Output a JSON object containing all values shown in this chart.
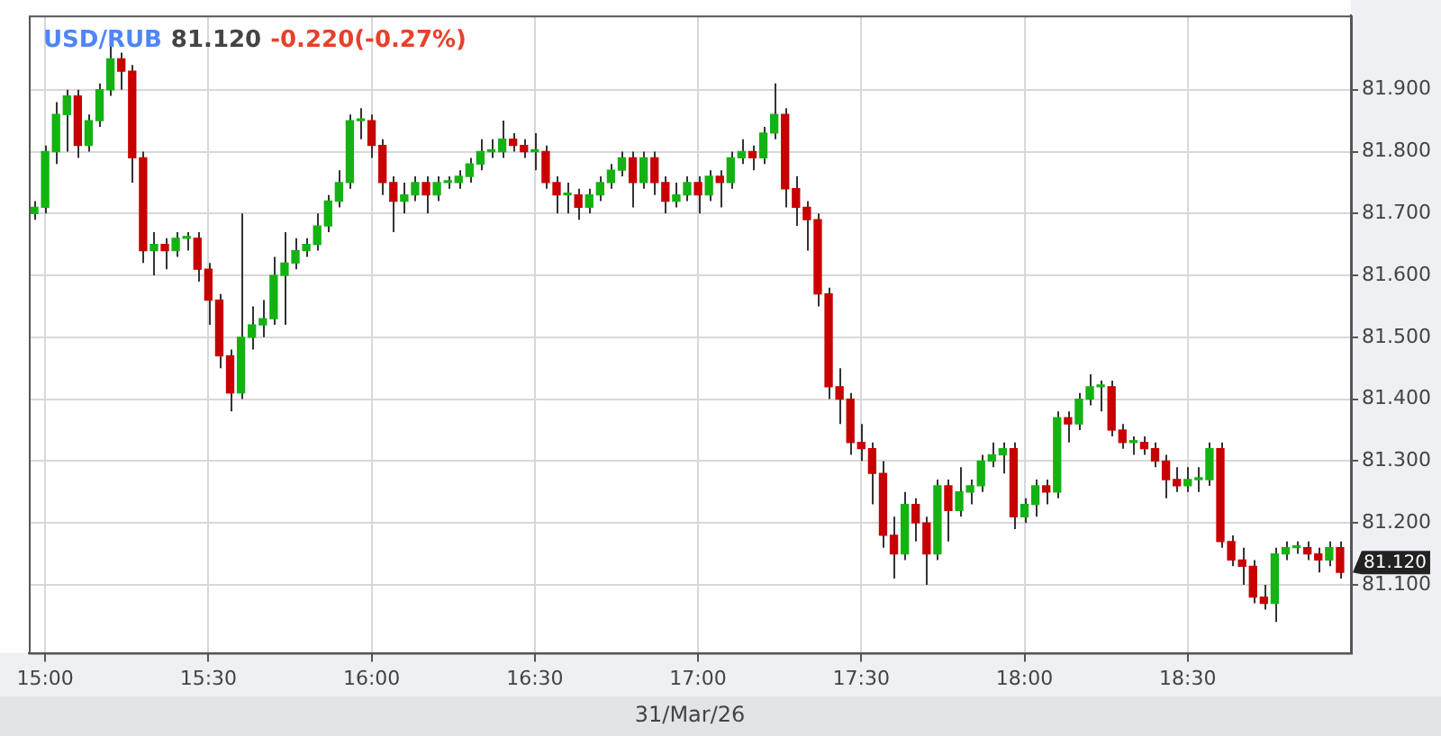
{
  "chart_data": {
    "type": "candlestick",
    "title": "USD/RUB",
    "subtitle": "81.120",
    "xlabel": "31/Mar/26",
    "annotations": [
      "-0.220(-0.27%)",
      "81.120"
    ],
    "grid": true,
    "legend": false,
    "xlim": [
      "--03-31T14:57",
      "--03-31T19:00"
    ],
    "xticks": [
      {
        "value": "--03-31T15:00",
        "label": "15:00"
      },
      {
        "value": "--03-31T15:30",
        "label": "15:30"
      },
      {
        "value": "--03-31T16:00",
        "label": "16:00"
      },
      {
        "value": "--03-31T16:30",
        "label": "16:30"
      },
      {
        "value": "--03-31T17:00",
        "label": "17:00"
      },
      {
        "value": "--03-31T17:30",
        "label": "17:30"
      },
      {
        "value": "--03-31T18:00",
        "label": "18:00"
      },
      {
        "value": "--03-31T18:30",
        "label": "18:30"
      }
    ],
    "ylim": [
      80.99,
      82.02
    ],
    "yticks": [
      {
        "value": 81.1,
        "label": "81.100"
      },
      {
        "value": 81.2,
        "label": "81.200"
      },
      {
        "value": 81.3,
        "label": "81.300"
      },
      {
        "value": 81.4,
        "label": "81.400"
      },
      {
        "value": 81.5,
        "label": "81.500"
      },
      {
        "value": 81.6,
        "label": "81.600"
      },
      {
        "value": 81.7,
        "label": "81.700"
      },
      {
        "value": 81.8,
        "label": "81.800"
      },
      {
        "value": 81.9,
        "label": "81.900"
      }
    ],
    "x": [
      "--03-31T14:58",
      "--03-31T15:00",
      "--03-31T15:02",
      "--03-31T15:04",
      "--03-31T15:06",
      "--03-31T15:08",
      "--03-31T15:10",
      "--03-31T15:12",
      "--03-31T15:14",
      "--03-31T15:16",
      "--03-31T15:18",
      "--03-31T15:20",
      "--03-31T15:22",
      "--03-31T15:24",
      "--03-31T15:26",
      "--03-31T15:28",
      "--03-31T15:30",
      "--03-31T15:32",
      "--03-31T15:34",
      "--03-31T15:36",
      "--03-31T15:38",
      "--03-31T15:40",
      "--03-31T15:42",
      "--03-31T15:44",
      "--03-31T15:46",
      "--03-31T15:48",
      "--03-31T15:50",
      "--03-31T15:52",
      "--03-31T15:54",
      "--03-31T15:56",
      "--03-31T15:58",
      "--03-31T16:00",
      "--03-31T16:02",
      "--03-31T16:04",
      "--03-31T16:06",
      "--03-31T16:08",
      "--03-31T16:10",
      "--03-31T16:12",
      "--03-31T16:14",
      "--03-31T16:16",
      "--03-31T16:18",
      "--03-31T16:20",
      "--03-31T16:22",
      "--03-31T16:24",
      "--03-31T16:26",
      "--03-31T16:28",
      "--03-31T16:30",
      "--03-31T16:32",
      "--03-31T16:34",
      "--03-31T16:36",
      "--03-31T16:38",
      "--03-31T16:40",
      "--03-31T16:42",
      "--03-31T16:44",
      "--03-31T16:46",
      "--03-31T16:48",
      "--03-31T16:50",
      "--03-31T16:52",
      "--03-31T16:54",
      "--03-31T16:56",
      "--03-31T16:58",
      "--03-31T17:00",
      "--03-31T17:02",
      "--03-31T17:04",
      "--03-31T17:06",
      "--03-31T17:08",
      "--03-31T17:10",
      "--03-31T17:12",
      "--03-31T17:14",
      "--03-31T17:16",
      "--03-31T17:18",
      "--03-31T17:20",
      "--03-31T17:22",
      "--03-31T17:24",
      "--03-31T17:26",
      "--03-31T17:28",
      "--03-31T17:30",
      "--03-31T17:32",
      "--03-31T17:34",
      "--03-31T17:36",
      "--03-31T17:38",
      "--03-31T17:40",
      "--03-31T17:42",
      "--03-31T17:44",
      "--03-31T17:46",
      "--03-31T17:48",
      "--03-31T17:50",
      "--03-31T17:52",
      "--03-31T17:54",
      "--03-31T17:56",
      "--03-31T17:58",
      "--03-31T18:00",
      "--03-31T18:02",
      "--03-31T18:04",
      "--03-31T18:06",
      "--03-31T18:08",
      "--03-31T18:10",
      "--03-31T18:12",
      "--03-31T18:14",
      "--03-31T18:16",
      "--03-31T18:18",
      "--03-31T18:20",
      "--03-31T18:22",
      "--03-31T18:24",
      "--03-31T18:26",
      "--03-31T18:28",
      "--03-31T18:30",
      "--03-31T18:32",
      "--03-31T18:34",
      "--03-31T18:36",
      "--03-31T18:38",
      "--03-31T18:40",
      "--03-31T18:42",
      "--03-31T18:44",
      "--03-31T18:46",
      "--03-31T18:48",
      "--03-31T18:50",
      "--03-31T18:52",
      "--03-31T18:54",
      "--03-31T18:56",
      "--03-31T18:58"
    ],
    "ohlc": [
      [
        81.7,
        81.72,
        81.69,
        81.71
      ],
      [
        81.71,
        81.81,
        81.7,
        81.8
      ],
      [
        81.8,
        81.88,
        81.78,
        81.86
      ],
      [
        81.86,
        81.9,
        81.8,
        81.89
      ],
      [
        81.89,
        81.9,
        81.79,
        81.81
      ],
      [
        81.81,
        81.86,
        81.8,
        81.85
      ],
      [
        81.85,
        81.91,
        81.84,
        81.9
      ],
      [
        81.9,
        81.97,
        81.89,
        81.95
      ],
      [
        81.95,
        81.96,
        81.9,
        81.93
      ],
      [
        81.93,
        81.94,
        81.75,
        81.79
      ],
      [
        81.79,
        81.8,
        81.62,
        81.64
      ],
      [
        81.64,
        81.67,
        81.6,
        81.65
      ],
      [
        81.65,
        81.66,
        81.61,
        81.64
      ],
      [
        81.64,
        81.67,
        81.63,
        81.66
      ],
      [
        81.66,
        81.67,
        81.64,
        81.66
      ],
      [
        81.66,
        81.67,
        81.59,
        81.61
      ],
      [
        81.61,
        81.62,
        81.52,
        81.56
      ],
      [
        81.56,
        81.57,
        81.45,
        81.47
      ],
      [
        81.47,
        81.48,
        81.38,
        81.41
      ],
      [
        81.41,
        81.7,
        81.4,
        81.5
      ],
      [
        81.5,
        81.55,
        81.48,
        81.52
      ],
      [
        81.52,
        81.56,
        81.5,
        81.53
      ],
      [
        81.53,
        81.63,
        81.52,
        81.6
      ],
      [
        81.6,
        81.67,
        81.52,
        81.62
      ],
      [
        81.62,
        81.66,
        81.61,
        81.64
      ],
      [
        81.64,
        81.66,
        81.63,
        81.65
      ],
      [
        81.65,
        81.7,
        81.64,
        81.68
      ],
      [
        81.68,
        81.73,
        81.67,
        81.72
      ],
      [
        81.72,
        81.77,
        81.71,
        81.75
      ],
      [
        81.75,
        81.86,
        81.74,
        81.85
      ],
      [
        81.85,
        81.87,
        81.82,
        81.85
      ],
      [
        81.85,
        81.86,
        81.79,
        81.81
      ],
      [
        81.81,
        81.82,
        81.73,
        81.75
      ],
      [
        81.75,
        81.76,
        81.67,
        81.72
      ],
      [
        81.72,
        81.75,
        81.7,
        81.73
      ],
      [
        81.73,
        81.76,
        81.72,
        81.75
      ],
      [
        81.75,
        81.76,
        81.7,
        81.73
      ],
      [
        81.73,
        81.76,
        81.72,
        81.75
      ],
      [
        81.75,
        81.76,
        81.74,
        81.75
      ],
      [
        81.75,
        81.77,
        81.74,
        81.76
      ],
      [
        81.76,
        81.79,
        81.75,
        81.78
      ],
      [
        81.78,
        81.82,
        81.77,
        81.8
      ],
      [
        81.8,
        81.82,
        81.79,
        81.8
      ],
      [
        81.8,
        81.85,
        81.79,
        81.82
      ],
      [
        81.82,
        81.83,
        81.8,
        81.81
      ],
      [
        81.81,
        81.82,
        81.79,
        81.8
      ],
      [
        81.8,
        81.83,
        81.77,
        81.8
      ],
      [
        81.8,
        81.81,
        81.74,
        81.75
      ],
      [
        81.75,
        81.76,
        81.7,
        81.73
      ],
      [
        81.73,
        81.75,
        81.7,
        81.73
      ],
      [
        81.73,
        81.74,
        81.69,
        81.71
      ],
      [
        81.71,
        81.74,
        81.7,
        81.73
      ],
      [
        81.73,
        81.76,
        81.72,
        81.75
      ],
      [
        81.75,
        81.78,
        81.74,
        81.77
      ],
      [
        81.77,
        81.8,
        81.76,
        81.79
      ],
      [
        81.79,
        81.8,
        81.71,
        81.75
      ],
      [
        81.75,
        81.8,
        81.74,
        81.79
      ],
      [
        81.79,
        81.8,
        81.73,
        81.75
      ],
      [
        81.75,
        81.76,
        81.7,
        81.72
      ],
      [
        81.72,
        81.75,
        81.71,
        81.73
      ],
      [
        81.73,
        81.76,
        81.72,
        81.75
      ],
      [
        81.75,
        81.76,
        81.7,
        81.73
      ],
      [
        81.73,
        81.77,
        81.72,
        81.76
      ],
      [
        81.76,
        81.77,
        81.71,
        81.75
      ],
      [
        81.75,
        81.8,
        81.74,
        81.79
      ],
      [
        81.79,
        81.82,
        81.78,
        81.8
      ],
      [
        81.8,
        81.81,
        81.77,
        81.79
      ],
      [
        81.79,
        81.84,
        81.78,
        81.83
      ],
      [
        81.83,
        81.91,
        81.82,
        81.86
      ],
      [
        81.86,
        81.87,
        81.71,
        81.74
      ],
      [
        81.74,
        81.76,
        81.68,
        81.71
      ],
      [
        81.71,
        81.72,
        81.64,
        81.69
      ],
      [
        81.69,
        81.7,
        81.55,
        81.57
      ],
      [
        81.57,
        81.58,
        81.4,
        81.42
      ],
      [
        81.42,
        81.45,
        81.36,
        81.4
      ],
      [
        81.4,
        81.41,
        81.31,
        81.33
      ],
      [
        81.33,
        81.36,
        81.3,
        81.32
      ],
      [
        81.32,
        81.33,
        81.23,
        81.28
      ],
      [
        81.28,
        81.3,
        81.16,
        81.18
      ],
      [
        81.18,
        81.21,
        81.11,
        81.15
      ],
      [
        81.15,
        81.25,
        81.14,
        81.23
      ],
      [
        81.23,
        81.24,
        81.17,
        81.2
      ],
      [
        81.2,
        81.21,
        81.1,
        81.15
      ],
      [
        81.15,
        81.27,
        81.14,
        81.26
      ],
      [
        81.26,
        81.27,
        81.17,
        81.22
      ],
      [
        81.22,
        81.29,
        81.21,
        81.25
      ],
      [
        81.25,
        81.27,
        81.23,
        81.26
      ],
      [
        81.26,
        81.31,
        81.25,
        81.3
      ],
      [
        81.3,
        81.33,
        81.29,
        81.31
      ],
      [
        81.31,
        81.33,
        81.28,
        81.32
      ],
      [
        81.32,
        81.33,
        81.19,
        81.21
      ],
      [
        81.21,
        81.24,
        81.2,
        81.23
      ],
      [
        81.23,
        81.27,
        81.21,
        81.26
      ],
      [
        81.26,
        81.27,
        81.23,
        81.25
      ],
      [
        81.25,
        81.38,
        81.24,
        81.37
      ],
      [
        81.37,
        81.38,
        81.33,
        81.36
      ],
      [
        81.36,
        81.41,
        81.35,
        81.4
      ],
      [
        81.4,
        81.44,
        81.39,
        81.42
      ],
      [
        81.42,
        81.43,
        81.38,
        81.42
      ],
      [
        81.42,
        81.43,
        81.34,
        81.35
      ],
      [
        81.35,
        81.36,
        81.32,
        81.33
      ],
      [
        81.33,
        81.34,
        81.31,
        81.33
      ],
      [
        81.33,
        81.34,
        81.31,
        81.32
      ],
      [
        81.32,
        81.33,
        81.29,
        81.3
      ],
      [
        81.3,
        81.31,
        81.24,
        81.27
      ],
      [
        81.27,
        81.29,
        81.25,
        81.26
      ],
      [
        81.26,
        81.29,
        81.25,
        81.27
      ],
      [
        81.27,
        81.29,
        81.25,
        81.27
      ],
      [
        81.27,
        81.33,
        81.26,
        81.32
      ],
      [
        81.32,
        81.33,
        81.16,
        81.17
      ],
      [
        81.17,
        81.18,
        81.13,
        81.14
      ],
      [
        81.14,
        81.16,
        81.1,
        81.13
      ],
      [
        81.13,
        81.14,
        81.07,
        81.08
      ],
      [
        81.08,
        81.1,
        81.06,
        81.07
      ],
      [
        81.07,
        81.16,
        81.04,
        81.15
      ],
      [
        81.15,
        81.17,
        81.14,
        81.16
      ],
      [
        81.16,
        81.17,
        81.15,
        81.16
      ],
      [
        81.16,
        81.17,
        81.14,
        81.15
      ],
      [
        81.15,
        81.16,
        81.12,
        81.14
      ],
      [
        81.14,
        81.17,
        81.13,
        81.16
      ],
      [
        81.16,
        81.17,
        81.11,
        81.12
      ]
    ]
  }
}
